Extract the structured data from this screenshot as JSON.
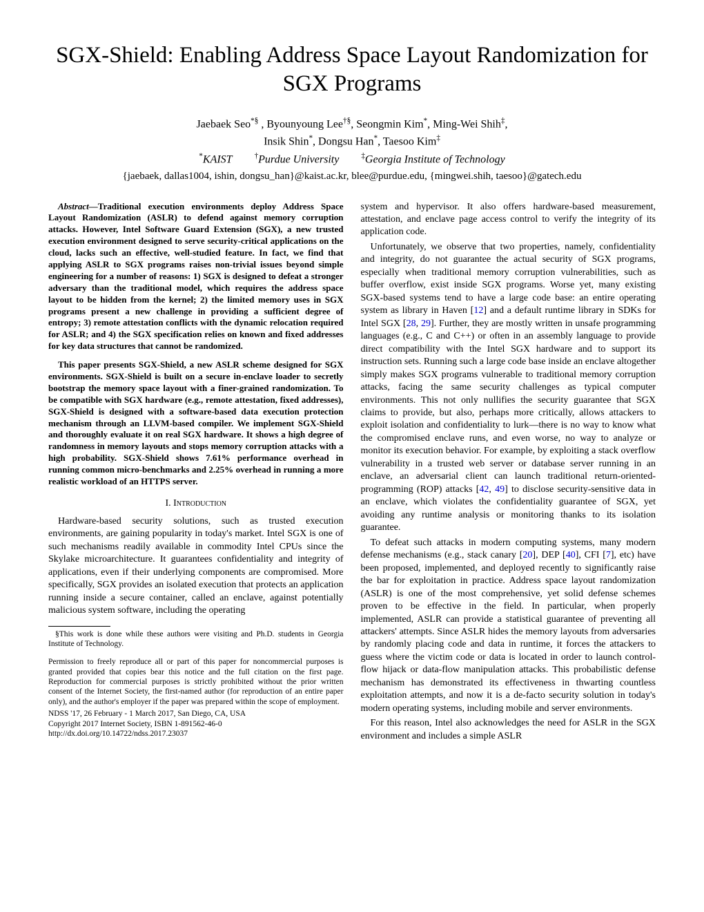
{
  "title": "SGX-Shield: Enabling Address Space Layout Randomization for SGX Programs",
  "authors_line1": "Jaebaek Seo*§ , Byounyoung Lee†§, Seongmin Kim*, Ming-Wei Shih‡,",
  "authors_line2": "Insik Shin*, Dongsu Han*, Taesoo Kim‡",
  "affiliations": "*KAIST        †Purdue University        ‡Georgia Institute of Technology",
  "emails": "{jaebaek, dallas1004, ishin, dongsu_han}@kaist.ac.kr, blee@purdue.edu, {mingwei.shih, taesoo}@gatech.edu",
  "abstract_label": "Abstract—",
  "abstract_p1": "Traditional execution environments deploy Address Space Layout Randomization (ASLR) to defend against memory corruption attacks. However, Intel Software Guard Extension (SGX), a new trusted execution environment designed to serve security-critical applications on the cloud, lacks such an effective, well-studied feature. In fact, we find that applying ASLR to SGX programs raises non-trivial issues beyond simple engineering for a number of reasons: 1) SGX is designed to defeat a stronger adversary than the traditional model, which requires the address space layout to be hidden from the kernel; 2) the limited memory uses in SGX programs present a new challenge in providing a sufficient degree of entropy; 3) remote attestation conflicts with the dynamic relocation required for ASLR; and 4) the SGX specification relies on known and fixed addresses for key data structures that cannot be randomized.",
  "abstract_p2": "This paper presents SGX-Shield, a new ASLR scheme designed for SGX environments. SGX-Shield is built on a secure in-enclave loader to secretly bootstrap the memory space layout with a finer-grained randomization. To be compatible with SGX hardware (e.g., remote attestation, fixed addresses), SGX-Shield is designed with a software-based data execution protection mechanism through an LLVM-based compiler. We implement SGX-Shield and thoroughly evaluate it on real SGX hardware. It shows a high degree of randomness in memory layouts and stops memory corruption attacks with a high probability. SGX-Shield shows 7.61% performance overhead in running common micro-benchmarks and 2.25% overhead in running a more realistic workload of an HTTPS server.",
  "section1": "I.    Introduction",
  "intro_p1": "Hardware-based security solutions, such as trusted execution environments, are gaining popularity in today's market. Intel SGX is one of such mechanisms readily available in commodity Intel CPUs since the Skylake microarchitecture. It guarantees confidentiality and integrity of applications, even if their underlying components are compromised. More specifically, SGX provides an isolated execution that protects an application running inside a secure container, called an enclave, against potentially malicious system software, including the operating",
  "footnote1": "§This work is done while these authors were visiting and Ph.D. students in Georgia Institute of Technology.",
  "permission": "Permission to freely reproduce all or part of this paper for noncommercial purposes is granted provided that copies bear this notice and the full citation on the first page. Reproduction for commercial purposes is strictly prohibited without the prior written consent of the Internet Society, the first-named author (for reproduction of an entire paper only), and the author's employer if the paper was prepared within the scope of employment.",
  "venue": "NDSS '17, 26 February - 1 March 2017, San Diego, CA, USA",
  "copyright": "Copyright 2017 Internet Society, ISBN 1-891562-46-0",
  "doi": "http://dx.doi.org/10.14722/ndss.2017.23037",
  "col2_p1a": "system and hypervisor. It also offers hardware-based measurement, attestation, and enclave page access control to verify the integrity of its application code.",
  "col2_p2a": "Unfortunately, we observe that two properties, namely, confidentiality and integrity, do not guarantee the actual security of SGX programs, especially when traditional memory corruption vulnerabilities, such as buffer overflow, exist inside SGX programs. Worse yet, many existing SGX-based systems tend to have a large code base: an entire operating system as library in Haven [",
  "ref12": "12",
  "col2_p2b": "] and a default runtime library in SDKs for Intel SGX [",
  "ref28": "28",
  "col2_p2c": ", ",
  "ref29": "29",
  "col2_p2d": "]. Further, they are mostly written in unsafe programming languages (e.g., C and C++) or often in an assembly language to provide direct compatibility with the Intel SGX hardware and to support its instruction sets. Running such a large code base inside an enclave altogether simply makes SGX programs vulnerable to traditional memory corruption attacks, facing the same security challenges as typical computer environments. This not only nullifies the security guarantee that SGX claims to provide, but also, perhaps more critically, allows attackers to exploit isolation and confidentiality to lurk—there is no way to know what the compromised enclave runs, and even worse, no way to analyze or monitor its execution behavior. For example, by exploiting a stack overflow vulnerability in a trusted web server or database server running in an enclave, an adversarial client can launch traditional return-oriented-programming (ROP) attacks [",
  "ref42": "42",
  "col2_p2e": ", ",
  "ref49": "49",
  "col2_p2f": "] to disclose security-sensitive data in an enclave, which violates the confidentiality guarantee of SGX, yet avoiding any runtime analysis or monitoring thanks to its isolation guarantee.",
  "col2_p3a": "To defeat such attacks in modern computing systems, many modern defense mechanisms (e.g., stack canary [",
  "ref20": "20",
  "col2_p3b": "], DEP [",
  "ref40": "40",
  "col2_p3c": "], CFI [",
  "ref7": "7",
  "col2_p3d": "], etc) have been proposed, implemented, and deployed recently to significantly raise the bar for exploitation in practice. Address space layout randomization (ASLR) is one of the most comprehensive, yet solid defense schemes proven to be effective in the field. In particular, when properly implemented, ASLR can provide a statistical guarantee of preventing all attackers' attempts. Since ASLR hides the memory layouts from adversaries by randomly placing code and data in runtime, it forces the attackers to guess where the victim code or data is located in order to launch control-flow hijack or data-flow manipulation attacks. This probabilistic defense mechanism has demonstrated its effectiveness in thwarting countless exploitation attempts, and now it is a de-facto security solution in today's modern operating systems, including mobile and server environments.",
  "col2_p4": "For this reason, Intel also acknowledges the need for ASLR in the SGX environment and includes a simple ASLR"
}
